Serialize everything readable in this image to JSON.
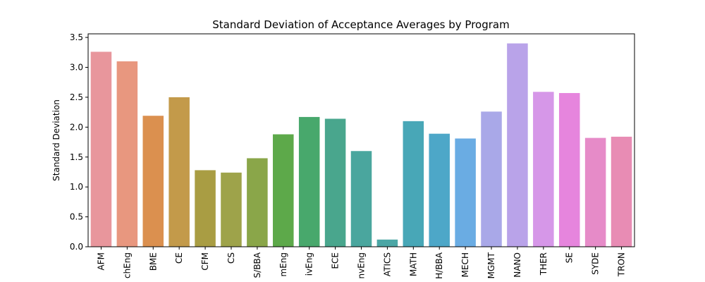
{
  "chart_data": {
    "type": "bar",
    "title": "Standard Deviation of Acceptance Averages by Program",
    "xlabel": "",
    "ylabel": "Standard Deviation",
    "ylim": [
      0,
      3.56
    ],
    "yticks": [
      "0.0",
      "0.5",
      "1.0",
      "1.5",
      "2.0",
      "2.5",
      "3.0",
      "3.5"
    ],
    "categories": [
      "AFM",
      "chEng",
      "BME",
      "CE",
      "CFM",
      "CS",
      "S/BBA",
      "mEng",
      "ivEng",
      "ECE",
      "nvEng",
      "ATICS",
      "MATH",
      "H/BBA",
      "MECH",
      "MGMT",
      "NANO",
      "THER",
      "SE",
      "SYDE",
      "TRON"
    ],
    "values": [
      3.26,
      3.1,
      2.19,
      2.5,
      1.28,
      1.24,
      1.48,
      1.88,
      2.17,
      2.14,
      1.6,
      0.12,
      2.1,
      1.89,
      1.81,
      2.26,
      3.4,
      2.59,
      2.57,
      1.82,
      1.84
    ],
    "colors": [
      "#e8969c",
      "#e8977f",
      "#db904f",
      "#c39a4a",
      "#a99d43",
      "#9ea34a",
      "#8aa649",
      "#5da94a",
      "#48a86c",
      "#49a68d",
      "#4aa69e",
      "#4ba6a5",
      "#48a7b7",
      "#4da7c8",
      "#6aace3",
      "#a9a8e8",
      "#b9a3e9",
      "#d697e8",
      "#e685dd",
      "#e68bc8",
      "#e88cb4"
    ],
    "grid": false,
    "legend": "none"
  }
}
